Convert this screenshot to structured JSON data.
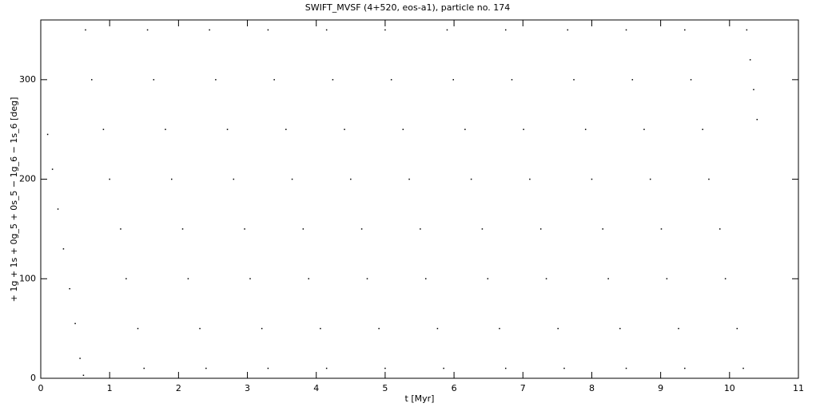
{
  "chart_data": {
    "type": "scatter",
    "title": "SWIFT_MVSF (4+520, eos-a1), particle no. 174",
    "x_label": "t [Myr]",
    "y_label": "+ 1g + 1s + 0g_5 + 0s_5 − 1g_6 − 1s_6 [deg]",
    "xlim": [
      0,
      11
    ],
    "ylim": [
      0,
      360
    ],
    "xticks": [
      0,
      1,
      2,
      3,
      4,
      5,
      6,
      7,
      8,
      9,
      10,
      11
    ],
    "yticks": [
      0,
      100,
      200,
      300
    ],
    "color": "#000000",
    "x": [
      0.1,
      0.17,
      0.25,
      0.33,
      0.42,
      0.5,
      0.57,
      0.62,
      0.65,
      0.74,
      0.91,
      1.0,
      1.16,
      1.24,
      1.41,
      1.5,
      1.55,
      1.64,
      1.81,
      1.9,
      2.06,
      2.14,
      2.31,
      2.4,
      2.45,
      2.54,
      2.71,
      2.8,
      2.96,
      3.04,
      3.21,
      3.3,
      3.3,
      3.39,
      3.56,
      3.65,
      3.81,
      3.89,
      4.06,
      4.15,
      4.15,
      4.24,
      4.41,
      4.5,
      4.66,
      4.74,
      4.91,
      5.0,
      5.0,
      5.09,
      5.26,
      5.35,
      5.51,
      5.59,
      5.76,
      5.85,
      5.9,
      5.99,
      6.16,
      6.25,
      6.41,
      6.49,
      6.66,
      6.75,
      6.75,
      6.84,
      7.01,
      7.1,
      7.26,
      7.34,
      7.51,
      7.6,
      7.65,
      7.74,
      7.91,
      8.0,
      8.16,
      8.24,
      8.41,
      8.5,
      8.5,
      8.59,
      8.76,
      8.85,
      9.01,
      9.09,
      9.26,
      9.35,
      9.35,
      9.44,
      9.61,
      9.7,
      9.86,
      9.94,
      10.11,
      10.2,
      10.25,
      10.3,
      10.35,
      10.4
    ],
    "values": [
      245,
      210,
      170,
      130,
      90,
      55,
      20,
      3,
      350,
      300,
      250,
      200,
      150,
      100,
      50,
      10,
      350,
      300,
      250,
      200,
      150,
      100,
      50,
      10,
      350,
      300,
      250,
      200,
      150,
      100,
      50,
      10,
      350,
      300,
      250,
      200,
      150,
      100,
      50,
      10,
      350,
      300,
      250,
      200,
      150,
      100,
      50,
      10,
      350,
      300,
      250,
      200,
      150,
      100,
      50,
      10,
      350,
      300,
      250,
      200,
      150,
      100,
      50,
      10,
      350,
      300,
      250,
      200,
      150,
      100,
      50,
      10,
      350,
      300,
      250,
      200,
      150,
      100,
      50,
      10,
      350,
      300,
      250,
      200,
      150,
      100,
      50,
      10,
      350,
      300,
      250,
      200,
      150,
      100,
      50,
      10,
      350,
      320,
      290,
      260
    ]
  }
}
